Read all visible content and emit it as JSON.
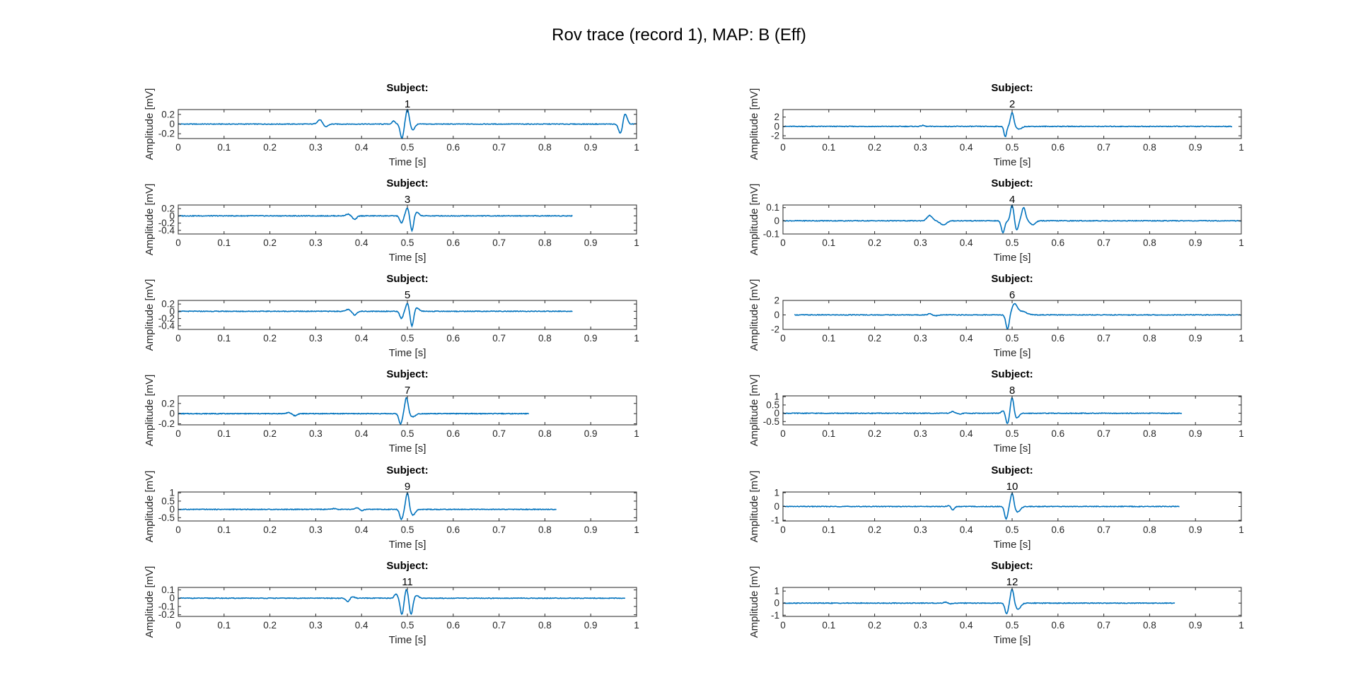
{
  "figure": {
    "title": "Rov trace (record 1), MAP: B (Eff)",
    "trace_color": "#0072BD"
  },
  "chart_data": [
    {
      "type": "line",
      "title": "Subject:",
      "subtitle": "1",
      "xlabel": "Time [s]",
      "ylabel": "Amplitude [mV]",
      "xlim": [
        0,
        1
      ],
      "ylim": [
        -0.3,
        0.3
      ],
      "xticks": [
        0,
        0.1,
        0.2,
        0.3,
        0.4,
        0.5,
        0.6,
        0.7,
        0.8,
        0.9,
        1
      ],
      "yticks": [
        -0.2,
        0,
        0.2
      ],
      "x_end": 1.0,
      "baseline": 0.0,
      "features": [
        {
          "x": 0.31,
          "amp": 0.1,
          "w": 0.008
        },
        {
          "x": 0.32,
          "amp": -0.07,
          "w": 0.008
        },
        {
          "x": 0.47,
          "amp": 0.06,
          "w": 0.005
        },
        {
          "x": 0.488,
          "amp": -0.3,
          "w": 0.005
        },
        {
          "x": 0.5,
          "amp": 0.3,
          "w": 0.005
        },
        {
          "x": 0.512,
          "amp": -0.12,
          "w": 0.006
        },
        {
          "x": 0.975,
          "amp": 0.22,
          "w": 0.006
        },
        {
          "x": 0.965,
          "amp": -0.2,
          "w": 0.006
        }
      ]
    },
    {
      "type": "line",
      "title": "Subject:",
      "subtitle": "2",
      "xlabel": "Time [s]",
      "ylabel": "Amplitude [mV]",
      "xlim": [
        0,
        1
      ],
      "ylim": [
        -2.6,
        3.6
      ],
      "xticks": [
        0,
        0.1,
        0.2,
        0.3,
        0.4,
        0.5,
        0.6,
        0.7,
        0.8,
        0.9,
        1
      ],
      "yticks": [
        -2,
        0,
        2
      ],
      "x_end": 0.98,
      "baseline": 0.0,
      "features": [
        {
          "x": 0.305,
          "amp": 0.2,
          "w": 0.005
        },
        {
          "x": 0.485,
          "amp": -2.2,
          "w": 0.004
        },
        {
          "x": 0.5,
          "amp": 3.0,
          "w": 0.005
        },
        {
          "x": 0.515,
          "amp": -0.6,
          "w": 0.008
        }
      ]
    },
    {
      "type": "line",
      "title": "Subject:",
      "subtitle": "3",
      "xlabel": "Time [s]",
      "ylabel": "Amplitude [mV]",
      "xlim": [
        0,
        1
      ],
      "ylim": [
        -0.5,
        0.3
      ],
      "xticks": [
        0,
        0.1,
        0.2,
        0.3,
        0.4,
        0.5,
        0.6,
        0.7,
        0.8,
        0.9,
        1
      ],
      "yticks": [
        -0.4,
        -0.2,
        0,
        0.2
      ],
      "x_end": 0.86,
      "baseline": 0.0,
      "features": [
        {
          "x": 0.37,
          "amp": 0.05,
          "w": 0.006
        },
        {
          "x": 0.385,
          "amp": -0.1,
          "w": 0.006
        },
        {
          "x": 0.487,
          "amp": -0.2,
          "w": 0.005
        },
        {
          "x": 0.5,
          "amp": 0.22,
          "w": 0.005
        },
        {
          "x": 0.51,
          "amp": -0.42,
          "w": 0.005
        },
        {
          "x": 0.52,
          "amp": 0.1,
          "w": 0.007
        }
      ]
    },
    {
      "type": "line",
      "title": "Subject:",
      "subtitle": "4",
      "xlabel": "Time [s]",
      "ylabel": "Amplitude [mV]",
      "xlim": [
        0,
        1
      ],
      "ylim": [
        -0.1,
        0.12
      ],
      "xticks": [
        0,
        0.1,
        0.2,
        0.3,
        0.4,
        0.5,
        0.6,
        0.7,
        0.8,
        0.9,
        1
      ],
      "yticks": [
        -0.1,
        0,
        0.1
      ],
      "x_end": 1.0,
      "baseline": 0.0,
      "features": [
        {
          "x": 0.32,
          "amp": 0.04,
          "w": 0.008
        },
        {
          "x": 0.35,
          "amp": -0.03,
          "w": 0.01
        },
        {
          "x": 0.48,
          "amp": -0.09,
          "w": 0.005
        },
        {
          "x": 0.5,
          "amp": 0.12,
          "w": 0.005
        },
        {
          "x": 0.51,
          "amp": -0.07,
          "w": 0.005
        },
        {
          "x": 0.525,
          "amp": 0.1,
          "w": 0.006
        },
        {
          "x": 0.545,
          "amp": -0.03,
          "w": 0.008
        }
      ]
    },
    {
      "type": "line",
      "title": "Subject:",
      "subtitle": "5",
      "xlabel": "Time [s]",
      "ylabel": "Amplitude [mV]",
      "xlim": [
        0,
        1
      ],
      "ylim": [
        -0.5,
        0.3
      ],
      "xticks": [
        0,
        0.1,
        0.2,
        0.3,
        0.4,
        0.5,
        0.6,
        0.7,
        0.8,
        0.9,
        1
      ],
      "yticks": [
        -0.4,
        -0.2,
        0,
        0.2
      ],
      "x_end": 0.86,
      "baseline": 0.0,
      "features": [
        {
          "x": 0.37,
          "amp": 0.05,
          "w": 0.006
        },
        {
          "x": 0.385,
          "amp": -0.1,
          "w": 0.006
        },
        {
          "x": 0.487,
          "amp": -0.2,
          "w": 0.005
        },
        {
          "x": 0.5,
          "amp": 0.22,
          "w": 0.005
        },
        {
          "x": 0.51,
          "amp": -0.42,
          "w": 0.005
        },
        {
          "x": 0.52,
          "amp": 0.1,
          "w": 0.007
        }
      ]
    },
    {
      "type": "line",
      "title": "Subject:",
      "subtitle": "6",
      "xlabel": "Time [s]",
      "ylabel": "Amplitude [mV]",
      "xlim": [
        0,
        1
      ],
      "ylim": [
        -2,
        2
      ],
      "xticks": [
        0,
        0.1,
        0.2,
        0.3,
        0.4,
        0.5,
        0.6,
        0.7,
        0.8,
        0.9,
        1
      ],
      "yticks": [
        -2,
        0,
        2
      ],
      "x_start": 0.025,
      "x_end": 1.0,
      "baseline": 0.0,
      "features": [
        {
          "x": 0.32,
          "amp": 0.2,
          "w": 0.005
        },
        {
          "x": 0.335,
          "amp": -0.1,
          "w": 0.008
        },
        {
          "x": 0.49,
          "amp": -2.0,
          "w": 0.005
        },
        {
          "x": 0.505,
          "amp": 1.4,
          "w": 0.008
        },
        {
          "x": 0.52,
          "amp": 0.5,
          "w": 0.015
        }
      ]
    },
    {
      "type": "line",
      "title": "Subject:",
      "subtitle": "7",
      "xlabel": "Time [s]",
      "ylabel": "Amplitude [mV]",
      "xlim": [
        0,
        1
      ],
      "ylim": [
        -0.22,
        0.35
      ],
      "xticks": [
        0,
        0.1,
        0.2,
        0.3,
        0.4,
        0.5,
        0.6,
        0.7,
        0.8,
        0.9,
        1
      ],
      "yticks": [
        -0.2,
        0,
        0.2
      ],
      "x_end": 0.765,
      "baseline": 0.0,
      "features": [
        {
          "x": 0.24,
          "amp": 0.02,
          "w": 0.006
        },
        {
          "x": 0.255,
          "amp": -0.04,
          "w": 0.006
        },
        {
          "x": 0.485,
          "amp": -0.2,
          "w": 0.005
        },
        {
          "x": 0.498,
          "amp": 0.32,
          "w": 0.005
        },
        {
          "x": 0.512,
          "amp": -0.06,
          "w": 0.008
        }
      ]
    },
    {
      "type": "line",
      "title": "Subject:",
      "subtitle": "8",
      "xlabel": "Time [s]",
      "ylabel": "Amplitude [mV]",
      "xlim": [
        0,
        1
      ],
      "ylim": [
        -0.7,
        1.05
      ],
      "xticks": [
        0,
        0.1,
        0.2,
        0.3,
        0.4,
        0.5,
        0.6,
        0.7,
        0.8,
        0.9,
        1
      ],
      "yticks": [
        -0.5,
        0,
        0.5,
        1
      ],
      "x_end": 0.87,
      "baseline": 0.0,
      "features": [
        {
          "x": 0.37,
          "amp": 0.1,
          "w": 0.006
        },
        {
          "x": 0.385,
          "amp": -0.05,
          "w": 0.006
        },
        {
          "x": 0.48,
          "amp": 0.15,
          "w": 0.005
        },
        {
          "x": 0.49,
          "amp": -0.65,
          "w": 0.005
        },
        {
          "x": 0.5,
          "amp": 1.0,
          "w": 0.005
        },
        {
          "x": 0.51,
          "amp": -0.3,
          "w": 0.007
        }
      ]
    },
    {
      "type": "line",
      "title": "Subject:",
      "subtitle": "9",
      "xlabel": "Time [s]",
      "ylabel": "Amplitude [mV]",
      "xlim": [
        0,
        1
      ],
      "ylim": [
        -0.7,
        1.05
      ],
      "xticks": [
        0,
        0.1,
        0.2,
        0.3,
        0.4,
        0.5,
        0.6,
        0.7,
        0.8,
        0.9,
        1
      ],
      "yticks": [
        -0.5,
        0,
        0.5,
        1
      ],
      "x_end": 0.825,
      "baseline": 0.0,
      "features": [
        {
          "x": 0.34,
          "amp": 0.05,
          "w": 0.006
        },
        {
          "x": 0.39,
          "amp": 0.1,
          "w": 0.006
        },
        {
          "x": 0.4,
          "amp": -0.08,
          "w": 0.006
        },
        {
          "x": 0.487,
          "amp": -0.6,
          "w": 0.005
        },
        {
          "x": 0.5,
          "amp": 1.0,
          "w": 0.005
        },
        {
          "x": 0.512,
          "amp": -0.35,
          "w": 0.007
        }
      ]
    },
    {
      "type": "line",
      "title": "Subject:",
      "subtitle": "10",
      "xlabel": "Time [s]",
      "ylabel": "Amplitude [mV]",
      "xlim": [
        0,
        1
      ],
      "ylim": [
        -1.05,
        1.05
      ],
      "xticks": [
        0,
        0.1,
        0.2,
        0.3,
        0.4,
        0.5,
        0.6,
        0.7,
        0.8,
        0.9,
        1
      ],
      "yticks": [
        -1,
        0,
        1
      ],
      "x_end": 0.865,
      "baseline": 0.0,
      "features": [
        {
          "x": 0.365,
          "amp": 0.1,
          "w": 0.006
        },
        {
          "x": 0.37,
          "amp": -0.3,
          "w": 0.005
        },
        {
          "x": 0.487,
          "amp": -0.9,
          "w": 0.005
        },
        {
          "x": 0.5,
          "amp": 1.0,
          "w": 0.005
        },
        {
          "x": 0.512,
          "amp": -0.4,
          "w": 0.008
        }
      ]
    },
    {
      "type": "line",
      "title": "Subject:",
      "subtitle": "11",
      "xlabel": "Time [s]",
      "ylabel": "Amplitude [mV]",
      "xlim": [
        0,
        1
      ],
      "ylim": [
        -0.22,
        0.13
      ],
      "xticks": [
        0,
        0.1,
        0.2,
        0.3,
        0.4,
        0.5,
        0.6,
        0.7,
        0.8,
        0.9,
        1
      ],
      "yticks": [
        -0.2,
        -0.1,
        0,
        0.1
      ],
      "x_end": 0.975,
      "baseline": 0.0,
      "features": [
        {
          "x": 0.37,
          "amp": -0.04,
          "w": 0.006
        },
        {
          "x": 0.38,
          "amp": 0.02,
          "w": 0.006
        },
        {
          "x": 0.475,
          "amp": 0.05,
          "w": 0.005
        },
        {
          "x": 0.488,
          "amp": -0.2,
          "w": 0.005
        },
        {
          "x": 0.498,
          "amp": 0.11,
          "w": 0.005
        },
        {
          "x": 0.508,
          "amp": -0.2,
          "w": 0.005
        },
        {
          "x": 0.52,
          "amp": 0.03,
          "w": 0.007
        }
      ]
    },
    {
      "type": "line",
      "title": "Subject:",
      "subtitle": "12",
      "xlabel": "Time [s]",
      "ylabel": "Amplitude [mV]",
      "xlim": [
        0,
        1
      ],
      "ylim": [
        -1.1,
        1.3
      ],
      "xticks": [
        0,
        0.1,
        0.2,
        0.3,
        0.4,
        0.5,
        0.6,
        0.7,
        0.8,
        0.9,
        1
      ],
      "yticks": [
        -1,
        0,
        1
      ],
      "x_end": 0.855,
      "baseline": 0.0,
      "features": [
        {
          "x": 0.355,
          "amp": 0.08,
          "w": 0.006
        },
        {
          "x": 0.365,
          "amp": -0.05,
          "w": 0.006
        },
        {
          "x": 0.488,
          "amp": -0.9,
          "w": 0.005
        },
        {
          "x": 0.5,
          "amp": 1.2,
          "w": 0.005
        },
        {
          "x": 0.513,
          "amp": -0.5,
          "w": 0.008
        }
      ]
    }
  ]
}
